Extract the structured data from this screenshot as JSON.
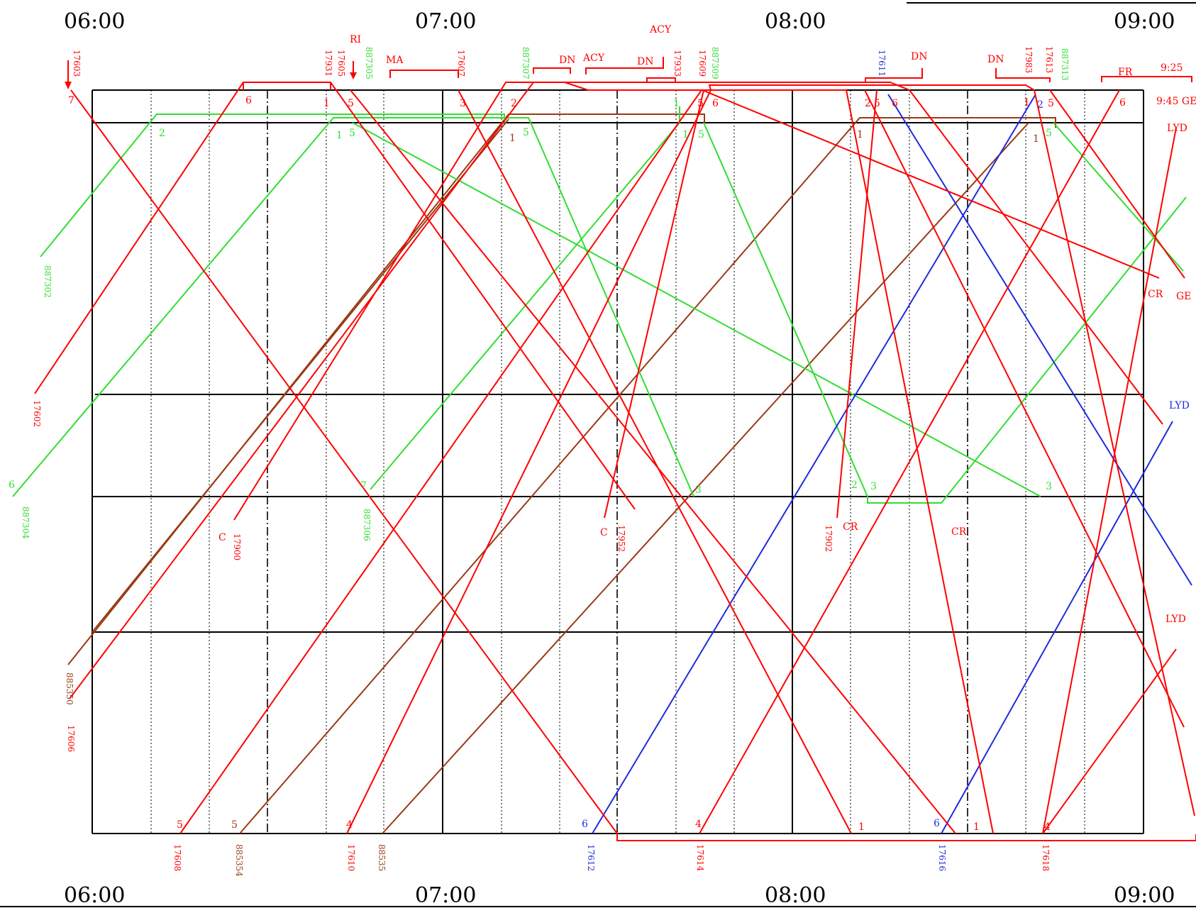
{
  "time_axis": {
    "top": [
      "06:00",
      "07:00",
      "08:00",
      "09:00"
    ],
    "bottom": [
      "06:00",
      "07:00",
      "08:00",
      "09:00"
    ]
  },
  "colors": {
    "red": "#ff0000",
    "green": "#33dd33",
    "brown": "#9a3a14",
    "blue": "#1f2cdb",
    "black": "#000000"
  },
  "station_labels": [
    {
      "id": "ri",
      "text": "RI",
      "color": "red"
    },
    {
      "id": "ma",
      "text": "MA",
      "color": "red"
    },
    {
      "id": "dn-1",
      "text": "DN",
      "color": "red"
    },
    {
      "id": "acy-1",
      "text": "ACY",
      "color": "red"
    },
    {
      "id": "acy-2",
      "text": "ACY",
      "color": "red"
    },
    {
      "id": "dn-2",
      "text": "DN",
      "color": "red"
    },
    {
      "id": "dn-3",
      "text": "DN",
      "color": "red"
    },
    {
      "id": "dn-4",
      "text": "DN",
      "color": "red"
    },
    {
      "id": "fr",
      "text": "FR",
      "color": "red"
    },
    {
      "id": "t925",
      "text": "9:25",
      "color": "red"
    },
    {
      "id": "t945ge",
      "text": "9:45 GE",
      "color": "red"
    },
    {
      "id": "lyd-1",
      "text": "LYD",
      "color": "red"
    },
    {
      "id": "cr-1",
      "text": "CR",
      "color": "red"
    },
    {
      "id": "ge",
      "text": "GE",
      "color": "red"
    },
    {
      "id": "lyd-2",
      "text": "LYD",
      "color": "blue"
    },
    {
      "id": "lyd-3",
      "text": "LYD",
      "color": "red"
    },
    {
      "id": "c-1",
      "text": "C",
      "color": "red"
    },
    {
      "id": "c-2",
      "text": "C",
      "color": "red"
    },
    {
      "id": "cr-2",
      "text": "CR",
      "color": "red"
    },
    {
      "id": "cr-3",
      "text": "CR",
      "color": "red"
    }
  ],
  "train_numbers": [
    {
      "id": "t17603",
      "text": "17603",
      "color": "red"
    },
    {
      "id": "t17931",
      "text": "17931",
      "color": "red"
    },
    {
      "id": "t17605",
      "text": "17605",
      "color": "red"
    },
    {
      "id": "t887305",
      "text": "887305",
      "color": "green"
    },
    {
      "id": "t17607",
      "text": "17607",
      "color": "red"
    },
    {
      "id": "t887307",
      "text": "887307",
      "color": "green"
    },
    {
      "id": "t17933",
      "text": "17933",
      "color": "red"
    },
    {
      "id": "t17609",
      "text": "17609",
      "color": "red"
    },
    {
      "id": "t887309",
      "text": "887309",
      "color": "green"
    },
    {
      "id": "t17611",
      "text": "17611",
      "color": "blue"
    },
    {
      "id": "t17983",
      "text": "17983",
      "color": "red"
    },
    {
      "id": "t17613",
      "text": "17613",
      "color": "red"
    },
    {
      "id": "t887313",
      "text": "887313",
      "color": "green"
    },
    {
      "id": "t887302",
      "text": "887302",
      "color": "green"
    },
    {
      "id": "t17602",
      "text": "17602",
      "color": "red"
    },
    {
      "id": "t887304",
      "text": "887304",
      "color": "green"
    },
    {
      "id": "t17900",
      "text": "17900",
      "color": "red"
    },
    {
      "id": "t887306",
      "text": "887306",
      "color": "green"
    },
    {
      "id": "t17952",
      "text": "17952",
      "color": "red"
    },
    {
      "id": "t17902",
      "text": "17902",
      "color": "red"
    },
    {
      "id": "t885350",
      "text": "885350",
      "color": "brown"
    },
    {
      "id": "t17606",
      "text": "17606",
      "color": "red"
    },
    {
      "id": "t17608",
      "text": "17608",
      "color": "red"
    },
    {
      "id": "t885354",
      "text": "885354",
      "color": "brown"
    },
    {
      "id": "t17610",
      "text": "17610",
      "color": "red"
    },
    {
      "id": "t88535",
      "text": "88535",
      "color": "brown"
    },
    {
      "id": "t17612",
      "text": "17612",
      "color": "blue"
    },
    {
      "id": "t17614",
      "text": "17614",
      "color": "red"
    },
    {
      "id": "t17616",
      "text": "17616",
      "color": "blue"
    },
    {
      "id": "t17618",
      "text": "17618",
      "color": "red"
    }
  ],
  "platform_numbers": [
    {
      "id": "p1",
      "text": "7",
      "color": "red"
    },
    {
      "id": "p2",
      "text": "6",
      "color": "red"
    },
    {
      "id": "p3",
      "text": "1",
      "color": "red"
    },
    {
      "id": "p4",
      "text": "5",
      "color": "red"
    },
    {
      "id": "p5",
      "text": "3",
      "color": "red"
    },
    {
      "id": "p6",
      "text": "2",
      "color": "red"
    },
    {
      "id": "p7",
      "text": "1",
      "color": "green"
    },
    {
      "id": "p8",
      "text": "5",
      "color": "red"
    },
    {
      "id": "p9",
      "text": "6",
      "color": "red"
    },
    {
      "id": "p10",
      "text": "2",
      "color": "red"
    },
    {
      "id": "p11",
      "text": "5",
      "color": "red"
    },
    {
      "id": "p12",
      "text": "6",
      "color": "red"
    },
    {
      "id": "p13",
      "text": "1",
      "color": "red"
    },
    {
      "id": "p14",
      "text": "2",
      "color": "blue"
    },
    {
      "id": "p15",
      "text": "5",
      "color": "red"
    },
    {
      "id": "p16",
      "text": "6",
      "color": "red"
    },
    {
      "id": "p17",
      "text": "2",
      "color": "green"
    },
    {
      "id": "p18",
      "text": "1",
      "color": "green"
    },
    {
      "id": "p19",
      "text": "5",
      "color": "green"
    },
    {
      "id": "p20",
      "text": "1",
      "color": "brown"
    },
    {
      "id": "p21",
      "text": "5",
      "color": "green"
    },
    {
      "id": "p22",
      "text": "1",
      "color": "green"
    },
    {
      "id": "p23",
      "text": "5",
      "color": "green"
    },
    {
      "id": "p24",
      "text": "1",
      "color": "brown"
    },
    {
      "id": "p25",
      "text": "1",
      "color": "brown"
    },
    {
      "id": "p26",
      "text": "5",
      "color": "green"
    },
    {
      "id": "p27",
      "text": "6",
      "color": "green"
    },
    {
      "id": "p28",
      "text": "7",
      "color": "green"
    },
    {
      "id": "p29",
      "text": "3",
      "color": "green"
    },
    {
      "id": "p30",
      "text": "2",
      "color": "green"
    },
    {
      "id": "p31",
      "text": "3",
      "color": "green"
    },
    {
      "id": "p32",
      "text": "3",
      "color": "green"
    },
    {
      "id": "p33",
      "text": "5",
      "color": "red"
    },
    {
      "id": "p34",
      "text": "5",
      "color": "brown"
    },
    {
      "id": "p35",
      "text": "4",
      "color": "red"
    },
    {
      "id": "p36",
      "text": "6",
      "color": "blue"
    },
    {
      "id": "p37",
      "text": "4",
      "color": "red"
    },
    {
      "id": "p38",
      "text": "1",
      "color": "red"
    },
    {
      "id": "p39",
      "text": "6",
      "color": "blue"
    },
    {
      "id": "p40",
      "text": "1",
      "color": "red"
    },
    {
      "id": "p41",
      "text": "4",
      "color": "red"
    }
  ]
}
